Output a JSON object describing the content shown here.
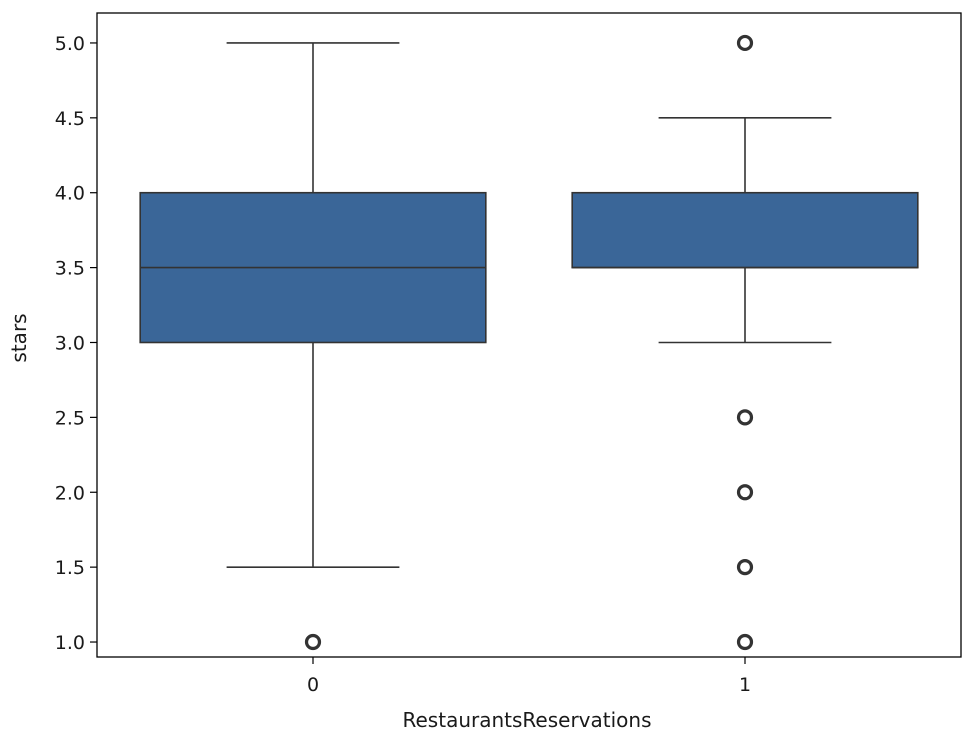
{
  "chart_data": {
    "type": "box",
    "xlabel": "RestaurantsReservations",
    "ylabel": "stars",
    "ylim": [
      0.9,
      5.2
    ],
    "yticks": [
      1.0,
      1.5,
      2.0,
      2.5,
      3.0,
      3.5,
      4.0,
      4.5,
      5.0
    ],
    "ytick_labels": [
      "1.0",
      "1.5",
      "2.0",
      "2.5",
      "3.0",
      "3.5",
      "4.0",
      "4.5",
      "5.0"
    ],
    "categories": [
      "0",
      "1"
    ],
    "grid": false,
    "box_color": "#3a6698",
    "line_color": "#333333",
    "boxes": [
      {
        "category": "0",
        "whisker_low": 1.5,
        "q1": 3.0,
        "median": 3.5,
        "q3": 4.0,
        "whisker_high": 5.0,
        "outliers": [
          1.0
        ]
      },
      {
        "category": "1",
        "whisker_low": 3.0,
        "q1": 3.5,
        "median": 3.5,
        "q3": 4.0,
        "whisker_high": 4.5,
        "outliers": [
          5.0,
          2.5,
          2.0,
          1.5,
          1.0
        ]
      }
    ]
  }
}
